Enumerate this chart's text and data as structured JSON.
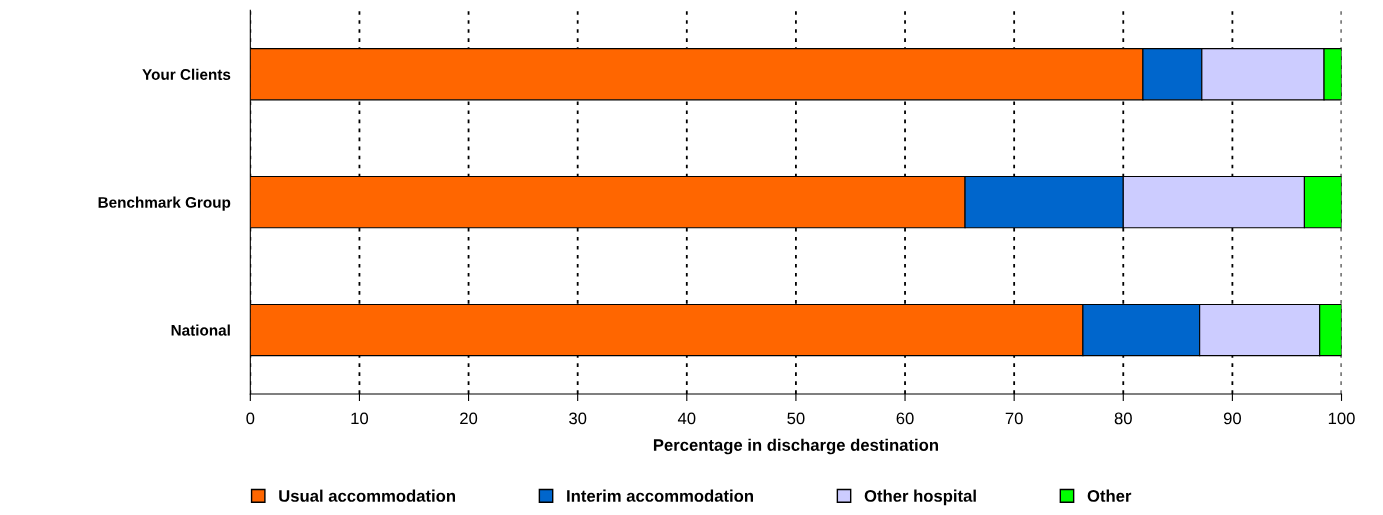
{
  "chart_data": {
    "type": "bar",
    "orientation": "horizontal",
    "stacked": true,
    "categories": [
      "Your Clients",
      "Benchmark Group",
      "National"
    ],
    "series": [
      {
        "name": "Usual accommodation",
        "color": "#ff6600",
        "values": [
          81.8,
          65.5,
          76.3
        ]
      },
      {
        "name": "Interim accommodation",
        "color": "#0066cc",
        "values": [
          5.4,
          14.5,
          10.7
        ]
      },
      {
        "name": "Other hospital",
        "color": "#ccccff",
        "values": [
          11.2,
          16.6,
          11.0
        ]
      },
      {
        "name": "Other",
        "color": "#00ff00",
        "values": [
          1.6,
          3.4,
          2.0
        ]
      }
    ],
    "xlabel": "Percentage in discharge destination",
    "xlim": [
      0,
      100
    ],
    "xticks": [
      0,
      10,
      20,
      30,
      40,
      50,
      60,
      70,
      80,
      90,
      100
    ],
    "grid": "x",
    "legend": "bottom"
  }
}
